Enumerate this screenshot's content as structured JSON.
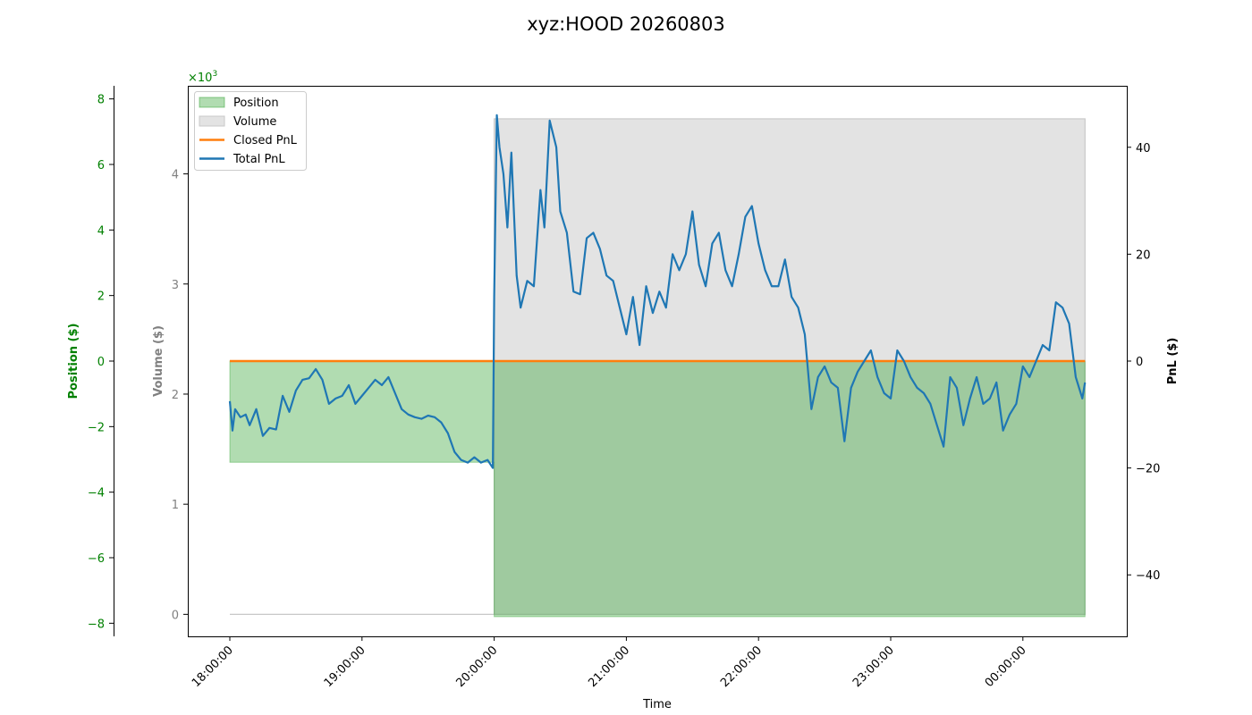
{
  "chart_data": {
    "type": "line",
    "title": "xyz:HOOD 20260803",
    "xlabel": "Time",
    "x_ticks": [
      "18:00:00",
      "19:00:00",
      "20:00:00",
      "21:00:00",
      "22:00:00",
      "23:00:00",
      "00:00:00"
    ],
    "axes": {
      "position": {
        "label": "Position ($)",
        "color": "#008000",
        "ylim": [
          -8400,
          8400
        ],
        "ticks": [
          8,
          6,
          4,
          2,
          0,
          -2,
          -4,
          -6,
          -8
        ],
        "tick_labels": [
          "8",
          "6",
          "4",
          "2",
          "0",
          "−2",
          "−4",
          "−6",
          "−8"
        ],
        "multiplier": "×10",
        "multiplier_exp": "3"
      },
      "volume": {
        "label": "Volume ($)",
        "color": "#808080",
        "ylim": [
          -0.2,
          4.8
        ],
        "ticks": [
          0,
          1,
          2,
          3,
          4
        ],
        "tick_labels": [
          "0",
          "1",
          "2",
          "3",
          "4"
        ]
      },
      "pnl": {
        "label": "PnL ($)",
        "color": "#000000",
        "ylim": [
          -51.5,
          51.5
        ],
        "ticks": [
          40,
          20,
          0,
          -20,
          -40
        ],
        "tick_labels": [
          "40",
          "20",
          "0",
          "−20",
          "−40"
        ]
      }
    },
    "legend": {
      "placement": "upper-left",
      "entries": [
        {
          "label": "Position",
          "kind": "patch",
          "color": "#2ca02c"
        },
        {
          "label": "Volume",
          "kind": "patch",
          "color": "#c8c8c8"
        },
        {
          "label": "Closed PnL",
          "kind": "line",
          "color": "#ff7f0e"
        },
        {
          "label": "Total PnL",
          "kind": "line",
          "color": "#1f77b4"
        }
      ]
    },
    "series": [
      {
        "name": "Position",
        "color": "#2ca02c",
        "x_hours": [
          0,
          2.0,
          2.0,
          6.47
        ],
        "values": [
          -3090,
          -3090,
          -7800,
          -7800
        ]
      },
      {
        "name": "Volume",
        "color": "#c8c8c8",
        "x_hours": [
          0,
          2.0,
          2.0,
          6.47
        ],
        "values": [
          0,
          0,
          4.5,
          4.5
        ]
      },
      {
        "name": "Closed PnL",
        "color": "#ff7f0e",
        "x_hours": [
          0,
          6.47
        ],
        "values": [
          0,
          0
        ]
      },
      {
        "name": "Total PnL",
        "color": "#1f77b4",
        "x_hours": [
          0,
          0.02,
          0.04,
          0.08,
          0.12,
          0.15,
          0.2,
          0.25,
          0.3,
          0.35,
          0.4,
          0.45,
          0.5,
          0.55,
          0.6,
          0.65,
          0.7,
          0.75,
          0.8,
          0.85,
          0.9,
          0.95,
          1.0,
          1.05,
          1.1,
          1.15,
          1.2,
          1.25,
          1.3,
          1.35,
          1.4,
          1.45,
          1.5,
          1.55,
          1.6,
          1.65,
          1.7,
          1.75,
          1.8,
          1.85,
          1.9,
          1.95,
          1.99,
          2.0,
          2.02,
          2.04,
          2.07,
          2.1,
          2.13,
          2.17,
          2.2,
          2.25,
          2.3,
          2.35,
          2.38,
          2.42,
          2.47,
          2.5,
          2.55,
          2.6,
          2.65,
          2.7,
          2.75,
          2.8,
          2.85,
          2.9,
          2.95,
          3.0,
          3.05,
          3.1,
          3.15,
          3.2,
          3.25,
          3.3,
          3.35,
          3.4,
          3.45,
          3.5,
          3.55,
          3.6,
          3.65,
          3.7,
          3.75,
          3.8,
          3.85,
          3.9,
          3.95,
          4.0,
          4.05,
          4.1,
          4.15,
          4.2,
          4.25,
          4.3,
          4.35,
          4.4,
          4.45,
          4.5,
          4.55,
          4.6,
          4.65,
          4.7,
          4.75,
          4.8,
          4.85,
          4.9,
          4.95,
          5.0,
          5.05,
          5.1,
          5.15,
          5.2,
          5.25,
          5.3,
          5.35,
          5.4,
          5.45,
          5.5,
          5.55,
          5.6,
          5.65,
          5.7,
          5.75,
          5.8,
          5.85,
          5.9,
          5.95,
          6.0,
          6.05,
          6.1,
          6.15,
          6.2,
          6.25,
          6.3,
          6.35,
          6.4,
          6.45,
          6.47
        ],
        "values": [
          -7.5,
          -13,
          -9,
          -10.5,
          -10,
          -12,
          -9,
          -14,
          -12.5,
          -12.8,
          -6.5,
          -9.5,
          -5.5,
          -3.5,
          -3.2,
          -1.5,
          -3.5,
          -8,
          -7,
          -6.5,
          -4.5,
          -8,
          -6.5,
          -5,
          -3.5,
          -4.5,
          -3,
          -6,
          -9,
          -10,
          -10.5,
          -10.8,
          -10.2,
          -10.5,
          -11.5,
          -13.5,
          -17,
          -18.5,
          -19,
          -18,
          -19,
          -18.5,
          -20,
          12,
          46,
          40,
          35,
          25,
          39,
          16,
          10,
          15,
          14,
          32,
          25,
          45,
          40,
          28,
          24,
          13,
          12.5,
          23,
          24,
          21,
          16,
          15,
          10,
          5,
          12,
          3,
          14,
          9,
          13,
          10,
          20,
          17,
          20,
          28,
          18,
          14,
          22,
          24,
          17,
          14,
          20,
          27,
          29,
          22,
          17,
          14,
          14,
          19,
          12,
          10,
          5,
          -9,
          -3,
          -1,
          -4,
          -5,
          -15,
          -5,
          -2,
          0,
          2,
          -3,
          -6,
          -7,
          2,
          0,
          -3,
          -5,
          -6,
          -8,
          -12,
          -16,
          -3,
          -5,
          -12,
          -7,
          -3,
          -8,
          -7,
          -4,
          -13,
          -10,
          -8,
          -1,
          -3,
          0,
          3,
          2,
          11,
          10,
          7,
          -3,
          -7,
          -4
        ]
      }
    ]
  }
}
